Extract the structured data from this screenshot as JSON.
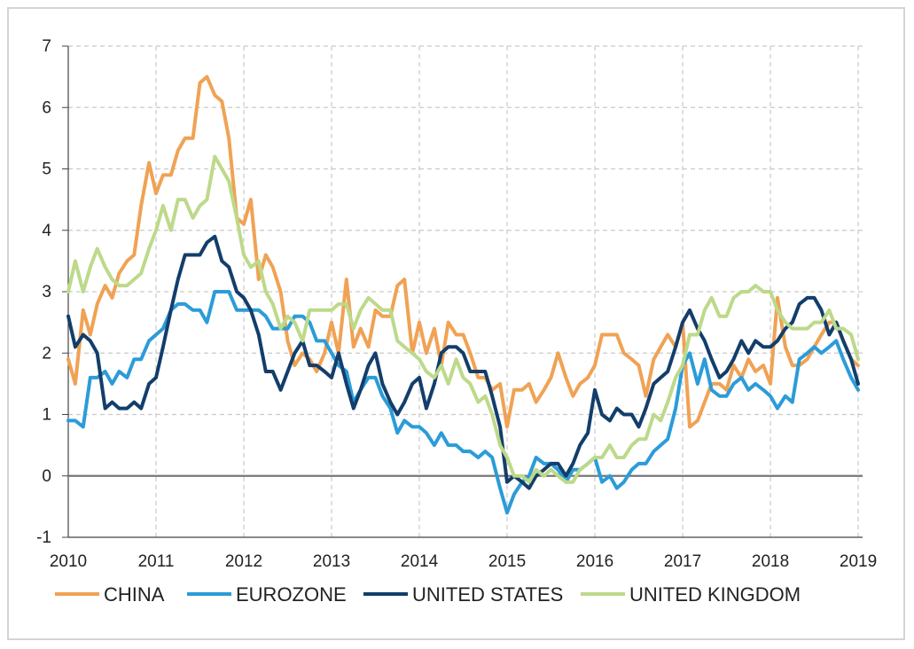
{
  "chart_data": {
    "type": "line",
    "title": "",
    "xlabel": "",
    "ylabel": "",
    "xlim": [
      2010,
      2019.05
    ],
    "ylim": [
      -1,
      7
    ],
    "x_ticks": [
      "2010",
      "2011",
      "2012",
      "2013",
      "2014",
      "2015",
      "2016",
      "2017",
      "2018",
      "2019"
    ],
    "y_ticks": [
      "-1",
      "0",
      "1",
      "2",
      "3",
      "4",
      "5",
      "6",
      "7"
    ],
    "grid": "dashed",
    "legend_position": "bottom",
    "series": [
      {
        "name": "CHINA",
        "color": "#f0a254",
        "x": [
          2010.0,
          2010.08,
          2010.17,
          2010.25,
          2010.33,
          2010.42,
          2010.5,
          2010.58,
          2010.67,
          2010.75,
          2010.83,
          2010.92,
          2011.0,
          2011.08,
          2011.17,
          2011.25,
          2011.33,
          2011.42,
          2011.5,
          2011.58,
          2011.67,
          2011.75,
          2011.83,
          2011.92,
          2012.0,
          2012.08,
          2012.17,
          2012.25,
          2012.33,
          2012.42,
          2012.5,
          2012.58,
          2012.67,
          2012.75,
          2012.83,
          2012.92,
          2013.0,
          2013.08,
          2013.17,
          2013.25,
          2013.33,
          2013.42,
          2013.5,
          2013.58,
          2013.67,
          2013.75,
          2013.83,
          2013.92,
          2014.0,
          2014.08,
          2014.17,
          2014.25,
          2014.33,
          2014.42,
          2014.5,
          2014.58,
          2014.67,
          2014.75,
          2014.83,
          2014.92,
          2015.0,
          2015.08,
          2015.17,
          2015.25,
          2015.33,
          2015.42,
          2015.5,
          2015.58,
          2015.67,
          2015.75,
          2015.83,
          2015.92,
          2016.0,
          2016.08,
          2016.17,
          2016.25,
          2016.33,
          2016.42,
          2016.5,
          2016.58,
          2016.67,
          2016.75,
          2016.83,
          2016.92,
          2017.0,
          2017.08,
          2017.17,
          2017.25,
          2017.33,
          2017.42,
          2017.5,
          2017.58,
          2017.67,
          2017.75,
          2017.83,
          2017.92,
          2018.0,
          2018.08,
          2018.17,
          2018.25,
          2018.33,
          2018.42,
          2018.5,
          2018.58,
          2018.67,
          2018.75,
          2018.83,
          2018.92,
          2019.0
        ],
        "values": [
          1.9,
          1.5,
          2.7,
          2.3,
          2.8,
          3.1,
          2.9,
          3.3,
          3.5,
          3.6,
          4.4,
          5.1,
          4.6,
          4.9,
          4.9,
          5.3,
          5.5,
          5.5,
          6.4,
          6.5,
          6.2,
          6.1,
          5.5,
          4.2,
          4.1,
          4.5,
          3.2,
          3.6,
          3.4,
          3.0,
          2.2,
          1.8,
          2.0,
          1.9,
          1.7,
          2.0,
          2.5,
          2.0,
          3.2,
          2.1,
          2.4,
          2.1,
          2.7,
          2.6,
          2.6,
          3.1,
          3.2,
          2.0,
          2.5,
          2.0,
          2.4,
          1.8,
          2.5,
          2.3,
          2.3,
          2.0,
          1.6,
          1.6,
          1.4,
          1.5,
          0.8,
          1.4,
          1.4,
          1.5,
          1.2,
          1.4,
          1.6,
          2.0,
          1.6,
          1.3,
          1.5,
          1.6,
          1.8,
          2.3,
          2.3,
          2.3,
          2.0,
          1.9,
          1.8,
          1.3,
          1.9,
          2.1,
          2.3,
          2.1,
          2.5,
          0.8,
          0.9,
          1.2,
          1.5,
          1.5,
          1.4,
          1.8,
          1.6,
          1.9,
          1.7,
          1.8,
          1.5,
          2.9,
          2.1,
          1.8,
          1.8,
          1.9,
          2.1,
          2.3,
          2.5,
          2.5,
          2.2,
          1.9,
          1.8
        ]
      },
      {
        "name": "EUROZONE",
        "color": "#2b9cd8",
        "x": [
          2010.0,
          2010.08,
          2010.17,
          2010.25,
          2010.33,
          2010.42,
          2010.5,
          2010.58,
          2010.67,
          2010.75,
          2010.83,
          2010.92,
          2011.0,
          2011.08,
          2011.17,
          2011.25,
          2011.33,
          2011.42,
          2011.5,
          2011.58,
          2011.67,
          2011.75,
          2011.83,
          2011.92,
          2012.0,
          2012.08,
          2012.17,
          2012.25,
          2012.33,
          2012.42,
          2012.5,
          2012.58,
          2012.67,
          2012.75,
          2012.83,
          2012.92,
          2013.0,
          2013.08,
          2013.17,
          2013.25,
          2013.33,
          2013.42,
          2013.5,
          2013.58,
          2013.67,
          2013.75,
          2013.83,
          2013.92,
          2014.0,
          2014.08,
          2014.17,
          2014.25,
          2014.33,
          2014.42,
          2014.5,
          2014.58,
          2014.67,
          2014.75,
          2014.83,
          2014.92,
          2015.0,
          2015.08,
          2015.17,
          2015.25,
          2015.33,
          2015.42,
          2015.5,
          2015.58,
          2015.67,
          2015.75,
          2015.83,
          2015.92,
          2016.0,
          2016.08,
          2016.17,
          2016.25,
          2016.33,
          2016.42,
          2016.5,
          2016.58,
          2016.67,
          2016.75,
          2016.83,
          2016.92,
          2017.0,
          2017.08,
          2017.17,
          2017.25,
          2017.33,
          2017.42,
          2017.5,
          2017.58,
          2017.67,
          2017.75,
          2017.83,
          2017.92,
          2018.0,
          2018.08,
          2018.17,
          2018.25,
          2018.33,
          2018.42,
          2018.5,
          2018.58,
          2018.67,
          2018.75,
          2018.83,
          2018.92,
          2019.0
        ],
        "values": [
          0.9,
          0.9,
          0.8,
          1.6,
          1.6,
          1.7,
          1.5,
          1.7,
          1.6,
          1.9,
          1.9,
          2.2,
          2.3,
          2.4,
          2.7,
          2.8,
          2.8,
          2.7,
          2.7,
          2.5,
          3.0,
          3.0,
          3.0,
          2.7,
          2.7,
          2.7,
          2.7,
          2.6,
          2.4,
          2.4,
          2.4,
          2.6,
          2.6,
          2.5,
          2.2,
          2.2,
          2.0,
          1.8,
          1.7,
          1.2,
          1.4,
          1.6,
          1.6,
          1.3,
          1.1,
          0.7,
          0.9,
          0.8,
          0.8,
          0.7,
          0.5,
          0.7,
          0.5,
          0.5,
          0.4,
          0.4,
          0.3,
          0.4,
          0.3,
          -0.2,
          -0.6,
          -0.3,
          -0.1,
          0.0,
          0.3,
          0.2,
          0.2,
          0.1,
          -0.1,
          0.1,
          0.1,
          0.2,
          0.3,
          -0.1,
          0.0,
          -0.2,
          -0.1,
          0.1,
          0.2,
          0.2,
          0.4,
          0.5,
          0.6,
          1.1,
          1.8,
          2.0,
          1.5,
          1.9,
          1.4,
          1.3,
          1.3,
          1.5,
          1.6,
          1.4,
          1.5,
          1.4,
          1.3,
          1.1,
          1.3,
          1.2,
          1.9,
          2.0,
          2.1,
          2.0,
          2.1,
          2.2,
          1.9,
          1.6,
          1.4
        ]
      },
      {
        "name": "UNITED STATES",
        "color": "#133e6b",
        "x": [
          2010.0,
          2010.08,
          2010.17,
          2010.25,
          2010.33,
          2010.42,
          2010.5,
          2010.58,
          2010.67,
          2010.75,
          2010.83,
          2010.92,
          2011.0,
          2011.08,
          2011.17,
          2011.25,
          2011.33,
          2011.42,
          2011.5,
          2011.58,
          2011.67,
          2011.75,
          2011.83,
          2011.92,
          2012.0,
          2012.08,
          2012.17,
          2012.25,
          2012.33,
          2012.42,
          2012.5,
          2012.58,
          2012.67,
          2012.75,
          2012.83,
          2012.92,
          2013.0,
          2013.08,
          2013.17,
          2013.25,
          2013.33,
          2013.42,
          2013.5,
          2013.58,
          2013.67,
          2013.75,
          2013.83,
          2013.92,
          2014.0,
          2014.08,
          2014.17,
          2014.25,
          2014.33,
          2014.42,
          2014.5,
          2014.58,
          2014.67,
          2014.75,
          2014.83,
          2014.92,
          2015.0,
          2015.08,
          2015.17,
          2015.25,
          2015.33,
          2015.42,
          2015.5,
          2015.58,
          2015.67,
          2015.75,
          2015.83,
          2015.92,
          2016.0,
          2016.08,
          2016.17,
          2016.25,
          2016.33,
          2016.42,
          2016.5,
          2016.58,
          2016.67,
          2016.75,
          2016.83,
          2016.92,
          2017.0,
          2017.08,
          2017.17,
          2017.25,
          2017.33,
          2017.42,
          2017.5,
          2017.58,
          2017.67,
          2017.75,
          2017.83,
          2017.92,
          2018.0,
          2018.08,
          2018.17,
          2018.25,
          2018.33,
          2018.42,
          2018.5,
          2018.58,
          2018.67,
          2018.75,
          2018.83,
          2018.92,
          2019.0
        ],
        "values": [
          2.6,
          2.1,
          2.3,
          2.2,
          2.0,
          1.1,
          1.2,
          1.1,
          1.1,
          1.2,
          1.1,
          1.5,
          1.6,
          2.1,
          2.7,
          3.2,
          3.6,
          3.6,
          3.6,
          3.8,
          3.9,
          3.5,
          3.4,
          3.0,
          2.9,
          2.7,
          2.3,
          1.7,
          1.7,
          1.4,
          1.7,
          2.0,
          2.2,
          1.8,
          1.8,
          1.7,
          1.6,
          2.0,
          1.5,
          1.1,
          1.4,
          1.8,
          2.0,
          1.5,
          1.2,
          1.0,
          1.2,
          1.5,
          1.6,
          1.1,
          1.5,
          2.0,
          2.1,
          2.1,
          2.0,
          1.7,
          1.7,
          1.7,
          1.3,
          0.8,
          -0.1,
          0.0,
          -0.1,
          -0.2,
          0.0,
          0.1,
          0.2,
          0.2,
          0.0,
          0.2,
          0.5,
          0.7,
          1.4,
          1.0,
          0.9,
          1.1,
          1.0,
          1.0,
          0.8,
          1.1,
          1.5,
          1.6,
          1.7,
          2.1,
          2.5,
          2.7,
          2.4,
          2.2,
          1.9,
          1.6,
          1.7,
          1.9,
          2.2,
          2.0,
          2.2,
          2.1,
          2.1,
          2.2,
          2.4,
          2.5,
          2.8,
          2.9,
          2.9,
          2.7,
          2.3,
          2.5,
          2.2,
          1.9,
          1.5
        ]
      },
      {
        "name": "UNITED KINGDOM",
        "color": "#bdd98a",
        "x": [
          2010.0,
          2010.08,
          2010.17,
          2010.25,
          2010.33,
          2010.42,
          2010.5,
          2010.58,
          2010.67,
          2010.75,
          2010.83,
          2010.92,
          2011.0,
          2011.08,
          2011.17,
          2011.25,
          2011.33,
          2011.42,
          2011.5,
          2011.58,
          2011.67,
          2011.75,
          2011.83,
          2011.92,
          2012.0,
          2012.08,
          2012.17,
          2012.25,
          2012.33,
          2012.42,
          2012.5,
          2012.58,
          2012.67,
          2012.75,
          2012.83,
          2012.92,
          2013.0,
          2013.08,
          2013.17,
          2013.25,
          2013.33,
          2013.42,
          2013.5,
          2013.58,
          2013.67,
          2013.75,
          2013.83,
          2013.92,
          2014.0,
          2014.08,
          2014.17,
          2014.25,
          2014.33,
          2014.42,
          2014.5,
          2014.58,
          2014.67,
          2014.75,
          2014.83,
          2014.92,
          2015.0,
          2015.08,
          2015.17,
          2015.25,
          2015.33,
          2015.42,
          2015.5,
          2015.58,
          2015.67,
          2015.75,
          2015.83,
          2015.92,
          2016.0,
          2016.08,
          2016.17,
          2016.25,
          2016.33,
          2016.42,
          2016.5,
          2016.58,
          2016.67,
          2016.75,
          2016.83,
          2016.92,
          2017.0,
          2017.08,
          2017.17,
          2017.25,
          2017.33,
          2017.42,
          2017.5,
          2017.58,
          2017.67,
          2017.75,
          2017.83,
          2017.92,
          2018.0,
          2018.08,
          2018.17,
          2018.25,
          2018.33,
          2018.42,
          2018.5,
          2018.58,
          2018.67,
          2018.75,
          2018.83,
          2018.92,
          2019.0
        ],
        "values": [
          3.0,
          3.5,
          3.0,
          3.4,
          3.7,
          3.4,
          3.2,
          3.1,
          3.1,
          3.2,
          3.3,
          3.7,
          4.0,
          4.4,
          4.0,
          4.5,
          4.5,
          4.2,
          4.4,
          4.5,
          5.2,
          5.0,
          4.8,
          4.2,
          3.6,
          3.4,
          3.5,
          3.0,
          2.8,
          2.4,
          2.6,
          2.5,
          2.2,
          2.7,
          2.7,
          2.7,
          2.7,
          2.8,
          2.8,
          2.4,
          2.7,
          2.9,
          2.8,
          2.7,
          2.7,
          2.2,
          2.1,
          2.0,
          1.9,
          1.7,
          1.6,
          1.8,
          1.5,
          1.9,
          1.6,
          1.5,
          1.2,
          1.3,
          1.0,
          0.5,
          0.3,
          0.0,
          0.0,
          -0.1,
          0.1,
          0.0,
          0.1,
          0.0,
          -0.1,
          -0.1,
          0.1,
          0.2,
          0.3,
          0.3,
          0.5,
          0.3,
          0.3,
          0.5,
          0.6,
          0.6,
          1.0,
          0.9,
          1.2,
          1.6,
          1.8,
          2.3,
          2.3,
          2.7,
          2.9,
          2.6,
          2.6,
          2.9,
          3.0,
          3.0,
          3.1,
          3.0,
          3.0,
          2.7,
          2.5,
          2.4,
          2.4,
          2.4,
          2.5,
          2.5,
          2.7,
          2.4,
          2.4,
          2.3,
          1.9
        ]
      }
    ]
  }
}
